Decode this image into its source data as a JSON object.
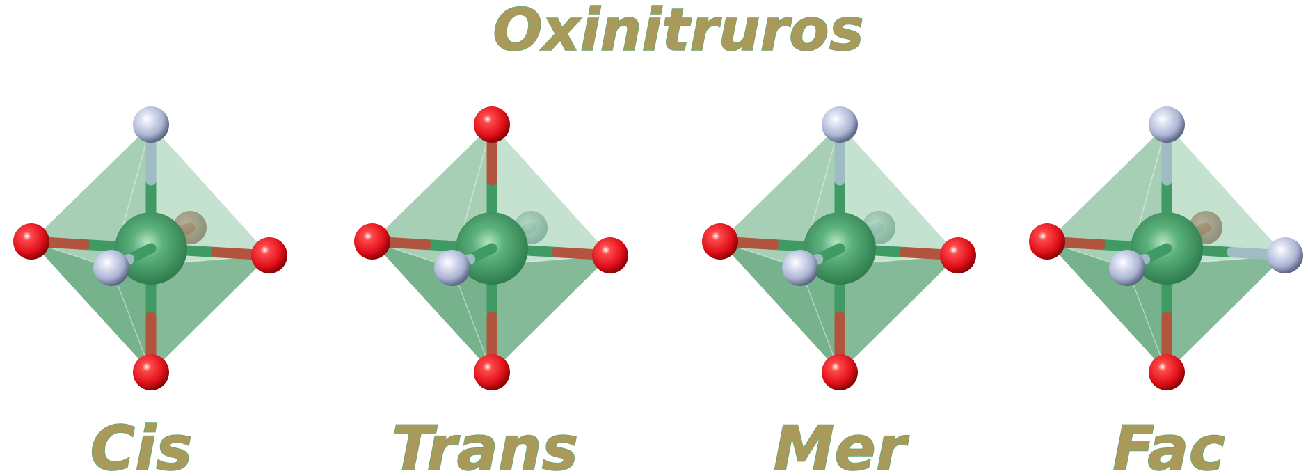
{
  "title": "Oxinitruros",
  "colors": {
    "label_fill": "#a99a5c",
    "label_outline": "#5fa873",
    "metal": "#3e9a63",
    "oxygen": "#e5141b",
    "nitrogen": "#b7bfdc",
    "polyhedron": "#5ea778"
  },
  "isomers": [
    {
      "label": "Cis",
      "sites": {
        "top": "N",
        "bottom": "O",
        "left": "O",
        "right": "O",
        "front": "N",
        "back": "O"
      }
    },
    {
      "label": "Trans",
      "sites": {
        "top": "O",
        "bottom": "O",
        "left": "O",
        "right": "O",
        "front": "N",
        "back": "N"
      }
    },
    {
      "label": "Mer",
      "sites": {
        "top": "N",
        "bottom": "O",
        "left": "O",
        "right": "O",
        "front": "N",
        "back": "N"
      }
    },
    {
      "label": "Fac",
      "sites": {
        "top": "N",
        "bottom": "O",
        "left": "O",
        "right": "N",
        "front": "N",
        "back": "O"
      }
    }
  ]
}
